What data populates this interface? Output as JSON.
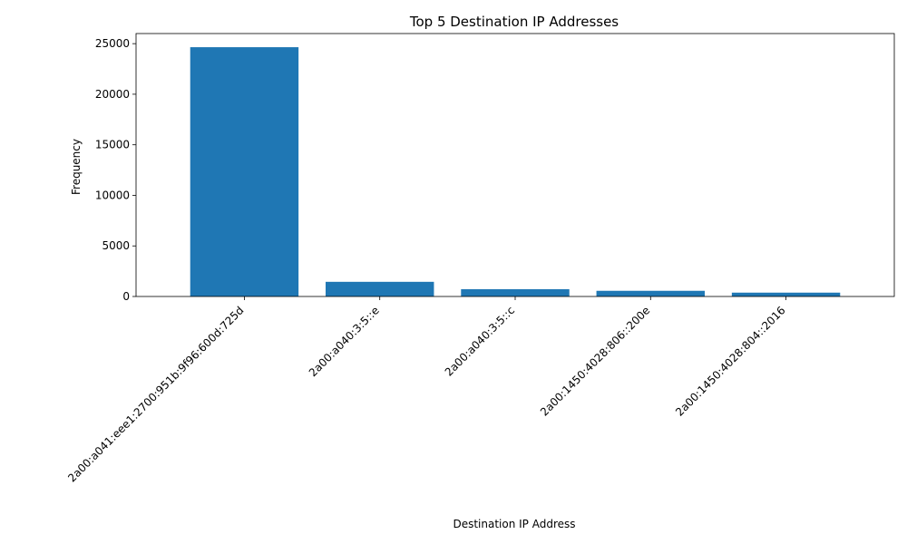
{
  "chart_data": {
    "type": "bar",
    "title": "Top 5 Destination IP Addresses",
    "xlabel": "Destination IP Address",
    "ylabel": "Frequency",
    "categories": [
      "2a00:a041:eee1:2700:951b:9f96:600d:725d",
      "2a00:a040:3:5::e",
      "2a00:a040:3:5::c",
      "2a00:1450:4028:806::200e",
      "2a00:1450:4028:804::2016"
    ],
    "values": [
      24650,
      1450,
      720,
      560,
      380
    ],
    "ylim": [
      0,
      26000
    ],
    "yticks": [
      0,
      5000,
      10000,
      15000,
      20000,
      25000
    ],
    "bar_color": "#1f77b4",
    "grid": false,
    "legend": "none"
  }
}
